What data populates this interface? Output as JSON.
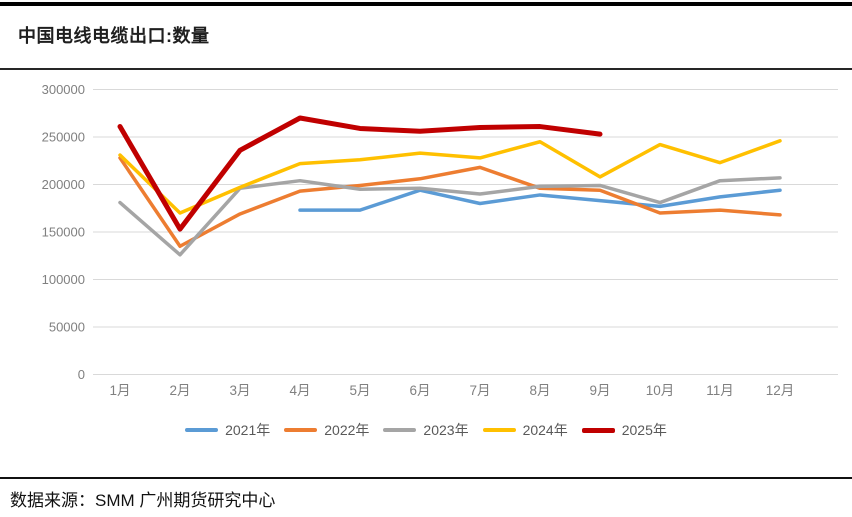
{
  "page": {
    "title": "中国电线电缆出口:数量",
    "source_label": "数据来源：SMM 广州期货研究中心"
  },
  "chart_data": {
    "type": "line",
    "title": "中国电线电缆出口:数量",
    "categories": [
      "1月",
      "2月",
      "3月",
      "4月",
      "5月",
      "6月",
      "7月",
      "8月",
      "9月",
      "10月",
      "11月",
      "12月"
    ],
    "series": [
      {
        "name": "2021年",
        "color": "#5B9BD5",
        "line_width": 3.5,
        "values": [
          null,
          null,
          null,
          173000,
          173000,
          194000,
          180000,
          189000,
          183000,
          177000,
          187000,
          194000
        ]
      },
      {
        "name": "2022年",
        "color": "#ED7D31",
        "line_width": 3.5,
        "values": [
          228000,
          135000,
          169000,
          193000,
          199000,
          206000,
          218000,
          196000,
          194000,
          170000,
          173000,
          168000
        ]
      },
      {
        "name": "2023年",
        "color": "#A5A5A5",
        "line_width": 3.5,
        "values": [
          181000,
          126000,
          196000,
          204000,
          195000,
          196000,
          190000,
          198000,
          199000,
          181000,
          204000,
          207000
        ]
      },
      {
        "name": "2024年",
        "color": "#FFC000",
        "line_width": 3.5,
        "values": [
          231000,
          170000,
          197000,
          222000,
          226000,
          233000,
          228000,
          245000,
          208000,
          242000,
          223000,
          246000
        ]
      },
      {
        "name": "2025年",
        "color": "#C00000",
        "line_width": 5,
        "values": [
          261000,
          153000,
          236000,
          270000,
          259000,
          256000,
          260000,
          261000,
          253000,
          null,
          null,
          null
        ]
      }
    ],
    "ylim": [
      0,
      300000
    ],
    "ytick_step": 50000,
    "ytick_labels": [
      "0",
      "50000",
      "100000",
      "150000",
      "200000",
      "250000",
      "300000"
    ],
    "grid": true,
    "gridline_color": "#D9D9D9",
    "axis_label_color": "#808080",
    "legend_position": "bottom",
    "legend_text_color": "#595959"
  }
}
